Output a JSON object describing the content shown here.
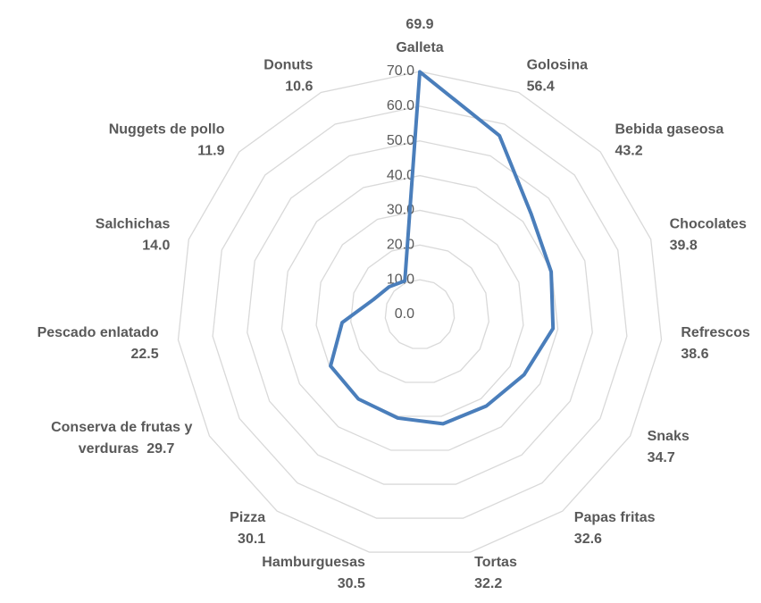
{
  "chart_data": {
    "type": "radar",
    "categories": [
      "Galleta",
      "Golosina",
      "Bebida gaseosa",
      "Chocolates",
      "Refrescos",
      "Snaks",
      "Papas fritas",
      "Tortas",
      "Hamburguesas",
      "Pizza",
      "Conserva de frutas y verduras",
      "Pescado enlatado",
      "Salchichas",
      "Nuggets de pollo",
      "Donuts"
    ],
    "values": [
      69.9,
      56.4,
      43.2,
      39.8,
      38.6,
      34.7,
      32.6,
      32.2,
      30.5,
      30.1,
      29.7,
      22.5,
      14.0,
      11.9,
      10.6
    ],
    "value_labels": [
      "69.9",
      "56.4",
      "43.2",
      "39.8",
      "38.6",
      "34.7",
      "32.6",
      "32.2",
      "30.5",
      "30.1",
      "29.7",
      "22.5",
      "14.0",
      "11.9",
      "10.6"
    ],
    "color": "#4a7ebb",
    "ylim": [
      0,
      70
    ],
    "yticks": [
      {
        "value": 0,
        "label": "0.0"
      },
      {
        "value": 10,
        "label": "10.0"
      },
      {
        "value": 20,
        "label": "20.0"
      },
      {
        "value": 30,
        "label": "30.0"
      },
      {
        "value": 40,
        "label": "40.0"
      },
      {
        "value": 50,
        "label": "50.0"
      },
      {
        "value": 60,
        "label": "60.0"
      },
      {
        "value": 70,
        "label": "70.0"
      }
    ],
    "grid": true
  }
}
